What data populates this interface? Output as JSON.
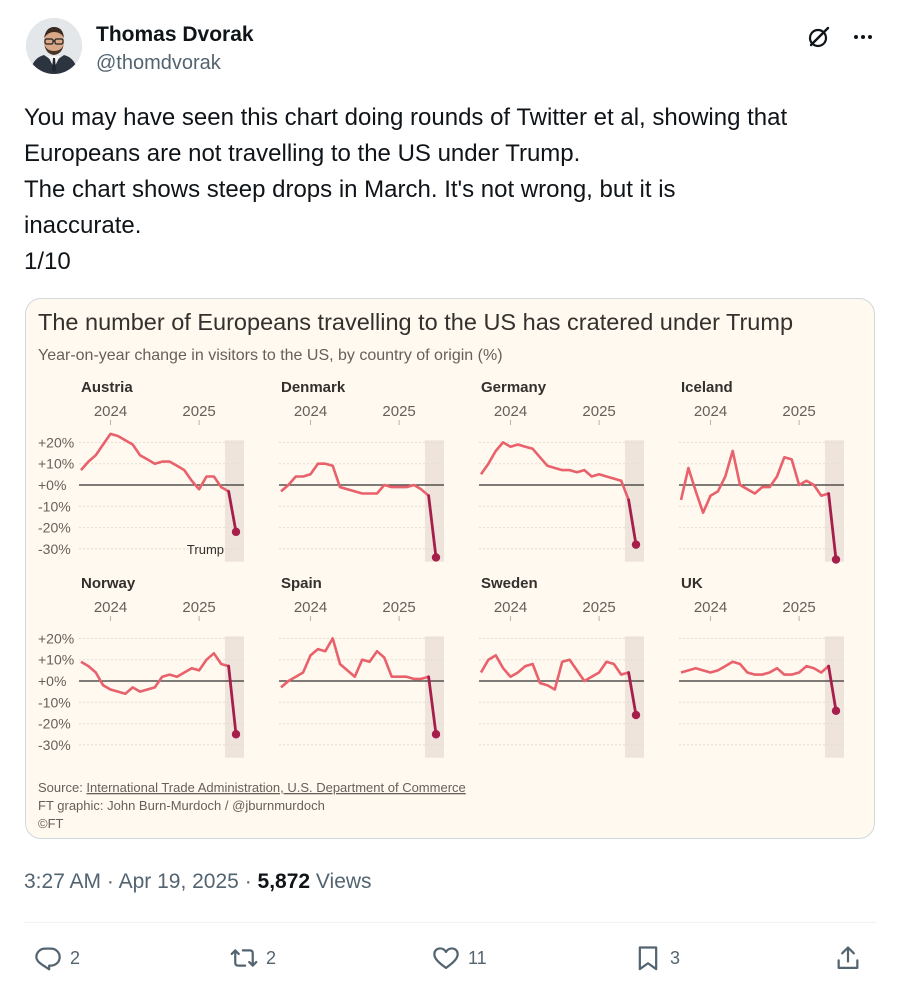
{
  "author": {
    "display_name": "Thomas Dvorak",
    "handle": "@thomdvorak"
  },
  "tweet": {
    "lines": [
      "You may have seen this chart doing rounds of Twitter et al, showing that",
      "Europeans are not travelling to the US under Trump.",
      "The chart shows steep drops in March. It's not wrong, but it is",
      "inaccurate.",
      "1/10"
    ]
  },
  "meta": {
    "time": "3:27 AM",
    "date": "Apr 19, 2025",
    "views_count": "5,872",
    "views_label": "Views"
  },
  "actions": {
    "replies": "2",
    "reposts": "2",
    "likes": "11",
    "bookmarks": "3"
  },
  "icons": [
    "grok-icon",
    "more-icon",
    "reply-icon",
    "repost-icon",
    "like-icon",
    "bookmark-icon",
    "share-icon"
  ],
  "colors": {
    "line": "#e8616b",
    "trump_segment": "#a61e4a",
    "chart_bg": "#fff9ef",
    "highlight_band": "#efe4dc"
  },
  "chart_text": {
    "source_prefix": "Source: ",
    "source_link": "International Trade Administration, U.S. Department of Commerce",
    "credit": "FT graphic: John Burn-Murdoch / @jburnmurdoch",
    "copyright": "©FT",
    "annotation": "Trump"
  },
  "chart_data": {
    "type": "line",
    "title": "The number of Europeans travelling to the US has cratered under Trump",
    "subtitle": "Year-on-year change in visitors to the US, by country of origin (%)",
    "x_ticks": [
      "2024",
      "2025"
    ],
    "y_ticks": [
      "+20%",
      "+10%",
      "+0%",
      "-10%",
      "-20%",
      "-30%"
    ],
    "ylim": [
      -35,
      25
    ],
    "x_start": "2023-09",
    "x_end": "2025-03",
    "highlight": "Trump",
    "panels": [
      {
        "name": "Austria",
        "values": [
          7,
          11,
          14,
          19,
          24,
          23,
          21,
          19,
          14,
          12,
          10,
          11,
          11,
          9,
          7,
          2,
          -2,
          4,
          4,
          -1,
          -3,
          -22
        ]
      },
      {
        "name": "Denmark",
        "values": [
          -3,
          0,
          4,
          4,
          5,
          10,
          10,
          9,
          -1,
          -2,
          -3,
          -4,
          -4,
          -4,
          0,
          -1,
          -1,
          -1,
          0,
          -2,
          -5,
          -34
        ]
      },
      {
        "name": "Germany",
        "values": [
          5,
          10,
          16,
          20,
          18,
          19,
          18,
          17,
          13,
          9,
          8,
          7,
          7,
          6,
          7,
          4,
          5,
          4,
          3,
          2,
          -7,
          -28
        ]
      },
      {
        "name": "Iceland",
        "values": [
          -7,
          8,
          -3,
          -13,
          -5,
          -3,
          4,
          16,
          0,
          -2,
          -4,
          -1,
          -1,
          4,
          13,
          12,
          0,
          2,
          0,
          -5,
          -4,
          -35
        ]
      },
      {
        "name": "Norway",
        "values": [
          9,
          7,
          4,
          -2,
          -4,
          -5,
          -6,
          -3,
          -5,
          -4,
          -3,
          2,
          3,
          2,
          4,
          6,
          5,
          10,
          13,
          8,
          7,
          -25
        ]
      },
      {
        "name": "Spain",
        "values": [
          -3,
          0,
          2,
          4,
          12,
          15,
          14,
          20,
          8,
          5,
          2,
          10,
          9,
          14,
          11,
          2,
          2,
          2,
          1,
          1,
          2,
          -25
        ]
      },
      {
        "name": "Sweden",
        "values": [
          4,
          10,
          12,
          6,
          2,
          4,
          7,
          8,
          -1,
          -2,
          -4,
          9,
          10,
          5,
          0,
          2,
          4,
          9,
          8,
          3,
          4,
          -16
        ]
      },
      {
        "name": "UK",
        "values": [
          4,
          5,
          6,
          5,
          4,
          5,
          7,
          9,
          8,
          4,
          3,
          3,
          4,
          6,
          3,
          3,
          4,
          7,
          6,
          4,
          7,
          -14
        ]
      }
    ]
  }
}
